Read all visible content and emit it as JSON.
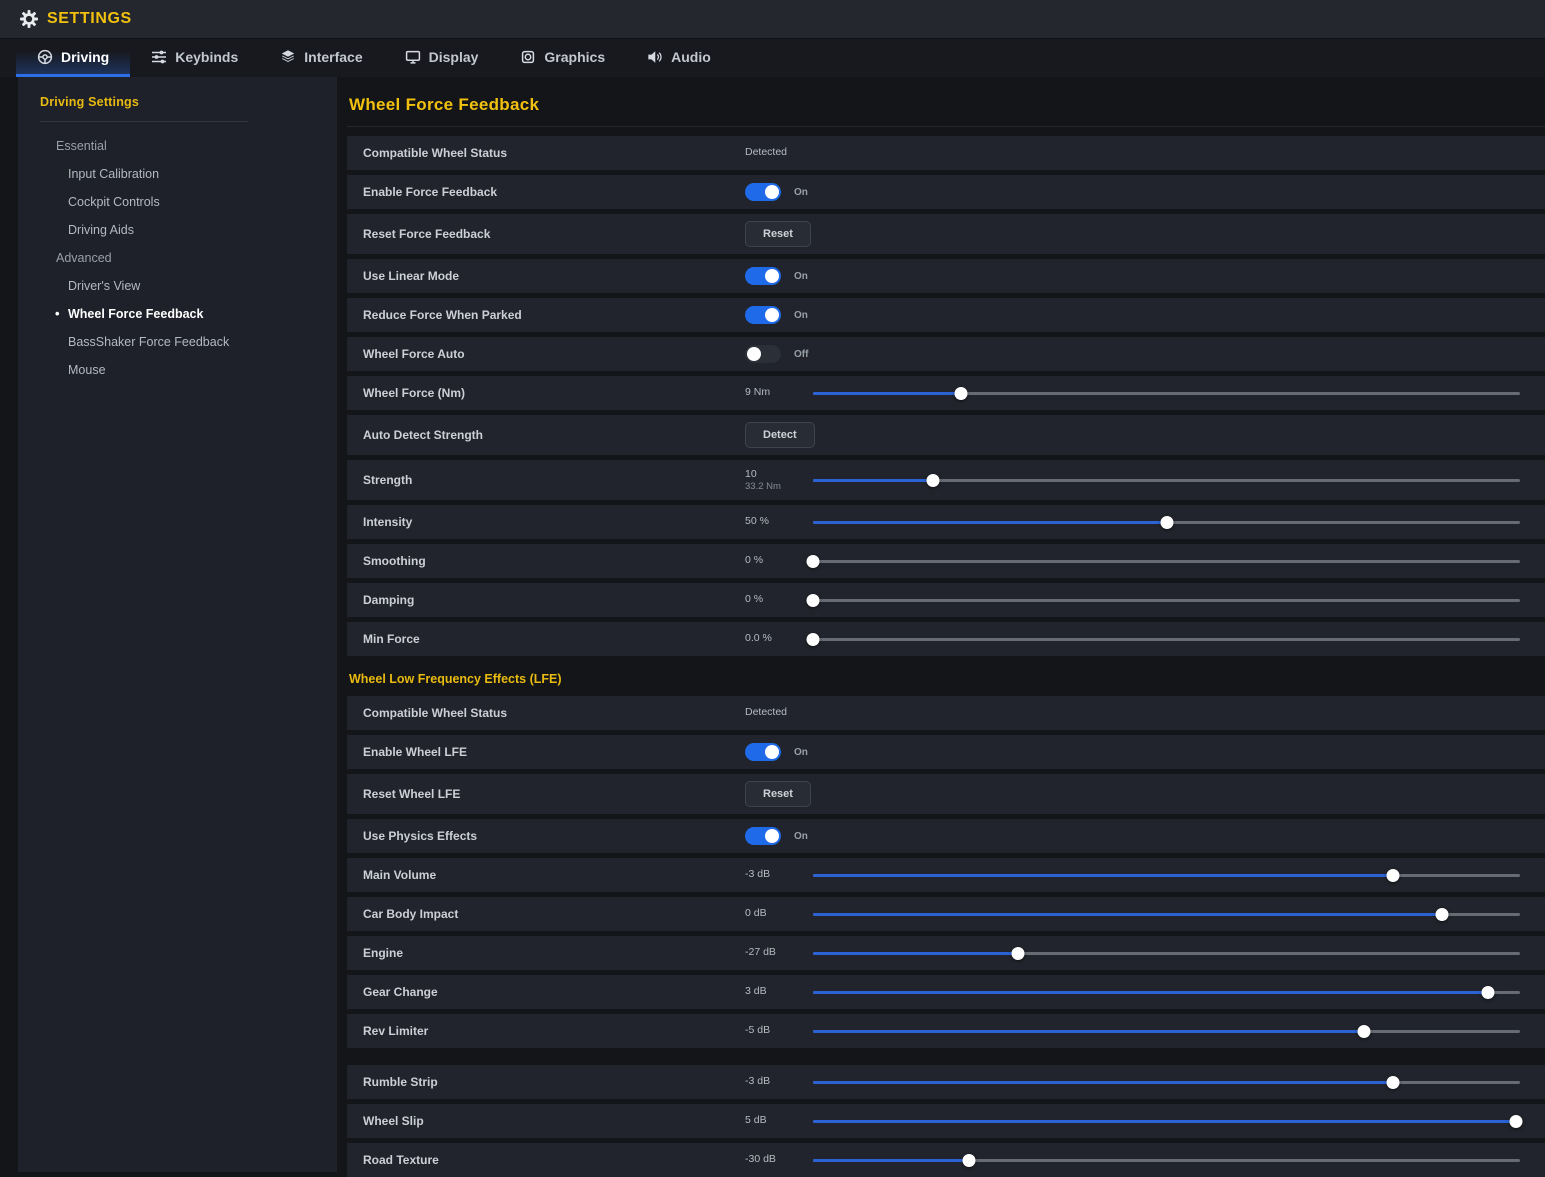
{
  "header": {
    "title": "SETTINGS",
    "icon": "gear"
  },
  "tabs": [
    {
      "label": "Driving",
      "icon": "steering-wheel",
      "active": true
    },
    {
      "label": "Keybinds",
      "icon": "sliders",
      "active": false
    },
    {
      "label": "Interface",
      "icon": "layers",
      "active": false
    },
    {
      "label": "Display",
      "icon": "monitor",
      "active": false
    },
    {
      "label": "Graphics",
      "icon": "chip",
      "active": false
    },
    {
      "label": "Audio",
      "icon": "speaker",
      "active": false
    }
  ],
  "sidebar": {
    "title": "Driving Settings",
    "items": [
      {
        "label": "Essential",
        "type": "group",
        "active": false
      },
      {
        "label": "Input Calibration",
        "type": "child",
        "active": false
      },
      {
        "label": "Cockpit Controls",
        "type": "child",
        "active": false
      },
      {
        "label": "Driving Aids",
        "type": "child",
        "active": false
      },
      {
        "label": "Advanced",
        "type": "group",
        "active": false
      },
      {
        "label": "Driver's View",
        "type": "child",
        "active": false
      },
      {
        "label": "Wheel Force Feedback",
        "type": "child",
        "active": true
      },
      {
        "label": "BassShaker Force Feedback",
        "type": "child",
        "active": false
      },
      {
        "label": "Mouse",
        "type": "child",
        "active": false
      }
    ]
  },
  "main": {
    "title": "Wheel Force Feedback",
    "sections": [
      {
        "heading": null,
        "rows": [
          {
            "label": "Compatible Wheel Status",
            "type": "status",
            "value": "Detected"
          },
          {
            "label": "Enable Force Feedback",
            "type": "toggle",
            "on": true,
            "state": "On"
          },
          {
            "label": "Reset Force Feedback",
            "type": "button",
            "button": "Reset"
          },
          {
            "label": "Use Linear Mode",
            "type": "toggle",
            "on": true,
            "state": "On"
          },
          {
            "label": "Reduce Force When Parked",
            "type": "toggle",
            "on": true,
            "state": "On"
          },
          {
            "label": "Wheel Force Auto",
            "type": "toggle",
            "on": false,
            "state": "Off"
          },
          {
            "label": "Wheel Force (Nm)",
            "type": "slider",
            "value": "9 Nm",
            "percent": 21
          },
          {
            "label": "Auto Detect Strength",
            "type": "button",
            "button": "Detect"
          },
          {
            "label": "Strength",
            "type": "slider",
            "value": "10",
            "value2": "33.2 Nm",
            "percent": 17
          },
          {
            "label": "Intensity",
            "type": "slider",
            "value": "50 %",
            "percent": 50
          },
          {
            "label": "Smoothing",
            "type": "slider",
            "value": "0 %",
            "percent": 0
          },
          {
            "label": "Damping",
            "type": "slider",
            "value": "0 %",
            "percent": 0
          },
          {
            "label": "Min Force",
            "type": "slider",
            "value": "0.0 %",
            "percent": 0
          }
        ]
      },
      {
        "heading": "Wheel Low Frequency Effects (LFE)",
        "rows": [
          {
            "label": "Compatible Wheel Status",
            "type": "status",
            "value": "Detected"
          },
          {
            "label": "Enable Wheel LFE",
            "type": "toggle",
            "on": true,
            "state": "On"
          },
          {
            "label": "Reset Wheel LFE",
            "type": "button",
            "button": "Reset"
          },
          {
            "label": "Use Physics Effects",
            "type": "toggle",
            "on": true,
            "state": "On"
          },
          {
            "label": "Main Volume",
            "type": "slider",
            "value": "-3 dB",
            "percent": 82
          },
          {
            "label": "Car Body Impact",
            "type": "slider",
            "value": "0 dB",
            "percent": 89
          },
          {
            "label": "Engine",
            "type": "slider",
            "value": "-27 dB",
            "percent": 29
          },
          {
            "label": "Gear Change",
            "type": "slider",
            "value": "3 dB",
            "percent": 95.5
          },
          {
            "label": "Rev Limiter",
            "type": "slider",
            "value": "-5 dB",
            "percent": 78,
            "gap_after": true
          },
          {
            "label": "Rumble Strip",
            "type": "slider",
            "value": "-3 dB",
            "percent": 82
          },
          {
            "label": "Wheel Slip",
            "type": "slider",
            "value": "5 dB",
            "percent": 99.5
          },
          {
            "label": "Road Texture",
            "type": "slider",
            "value": "-30 dB",
            "percent": 22
          }
        ]
      }
    ]
  },
  "colors": {
    "accent_yellow": "#f2c10e",
    "accent_blue": "#2e6fe8",
    "slider_fill_blue": "#2b63d4",
    "row_background": "#21242c",
    "page_background": "#131519"
  }
}
